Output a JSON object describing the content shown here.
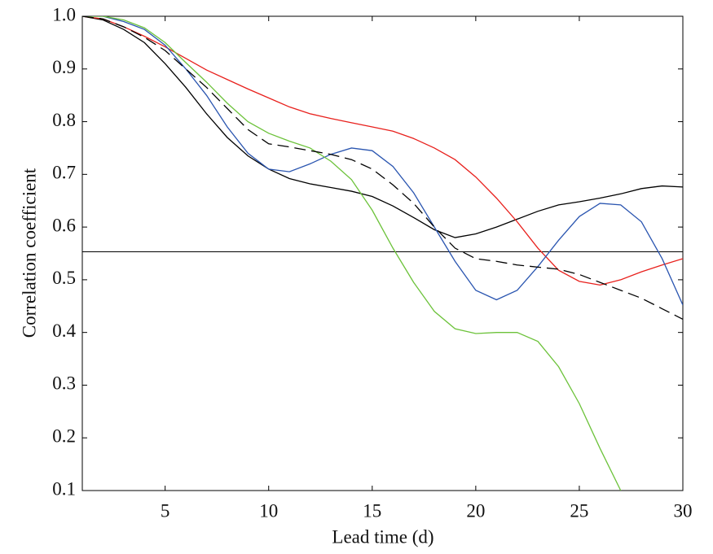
{
  "chart_data": {
    "type": "line",
    "x_label": "Lead time (d)",
    "y_label": "Correlation coefficient",
    "x": [
      1,
      2,
      3,
      4,
      5,
      6,
      7,
      8,
      9,
      10,
      11,
      12,
      13,
      14,
      15,
      16,
      17,
      18,
      19,
      20,
      21,
      22,
      23,
      24,
      25,
      26,
      27,
      28,
      29,
      30
    ],
    "series": [
      {
        "color": "#000000",
        "dash": false,
        "values": [
          1.0,
          0.993,
          0.975,
          0.95,
          0.91,
          0.865,
          0.815,
          0.77,
          0.735,
          0.71,
          0.692,
          0.682,
          0.675,
          0.668,
          0.658,
          0.64,
          0.618,
          0.595,
          0.58,
          0.587,
          0.6,
          0.615,
          0.63,
          0.642,
          0.648,
          0.655,
          0.663,
          0.673,
          0.678,
          0.676
        ]
      },
      {
        "color": "#e8201c",
        "dash": false,
        "values": [
          1.0,
          0.995,
          0.98,
          0.962,
          0.942,
          0.92,
          0.898,
          0.88,
          0.862,
          0.845,
          0.828,
          0.815,
          0.806,
          0.798,
          0.79,
          0.782,
          0.768,
          0.75,
          0.728,
          0.695,
          0.655,
          0.61,
          0.56,
          0.518,
          0.497,
          0.49,
          0.5,
          0.515,
          0.528,
          0.54
        ]
      },
      {
        "color": "#2a55b0",
        "dash": false,
        "values": [
          1.0,
          1.0,
          0.99,
          0.975,
          0.945,
          0.9,
          0.85,
          0.79,
          0.74,
          0.71,
          0.705,
          0.72,
          0.738,
          0.75,
          0.745,
          0.715,
          0.665,
          0.6,
          0.535,
          0.48,
          0.462,
          0.48,
          0.525,
          0.575,
          0.62,
          0.645,
          0.642,
          0.61,
          0.54,
          0.452
        ]
      },
      {
        "color": "#6cc23a",
        "dash": false,
        "values": [
          1.0,
          1.0,
          0.993,
          0.978,
          0.95,
          0.912,
          0.875,
          0.835,
          0.8,
          0.778,
          0.763,
          0.75,
          0.725,
          0.69,
          0.632,
          0.56,
          0.495,
          0.44,
          0.407,
          0.398,
          0.4,
          0.4,
          0.383,
          0.335,
          0.265,
          0.18,
          0.1,
          null,
          null,
          null
        ]
      },
      {
        "color": "#000000",
        "dash": true,
        "values": [
          1.0,
          0.995,
          0.98,
          0.96,
          0.935,
          0.9,
          0.865,
          0.825,
          0.785,
          0.758,
          0.752,
          0.745,
          0.738,
          0.728,
          0.71,
          0.68,
          0.645,
          0.6,
          0.56,
          0.54,
          0.535,
          0.528,
          0.524,
          0.52,
          0.51,
          0.495,
          0.48,
          0.465,
          0.445,
          0.425
        ]
      }
    ],
    "reference_line": 0.553,
    "xlim": [
      1,
      30
    ],
    "xticks": [
      5,
      10,
      15,
      20,
      25,
      30
    ],
    "ylim": [
      0.1,
      1.0
    ],
    "yticks": [
      0.1,
      0.2,
      0.3,
      0.4,
      0.5,
      0.6,
      0.7,
      0.8,
      0.9,
      {
        "value": 1.0,
        "label": "1.0"
      }
    ]
  }
}
